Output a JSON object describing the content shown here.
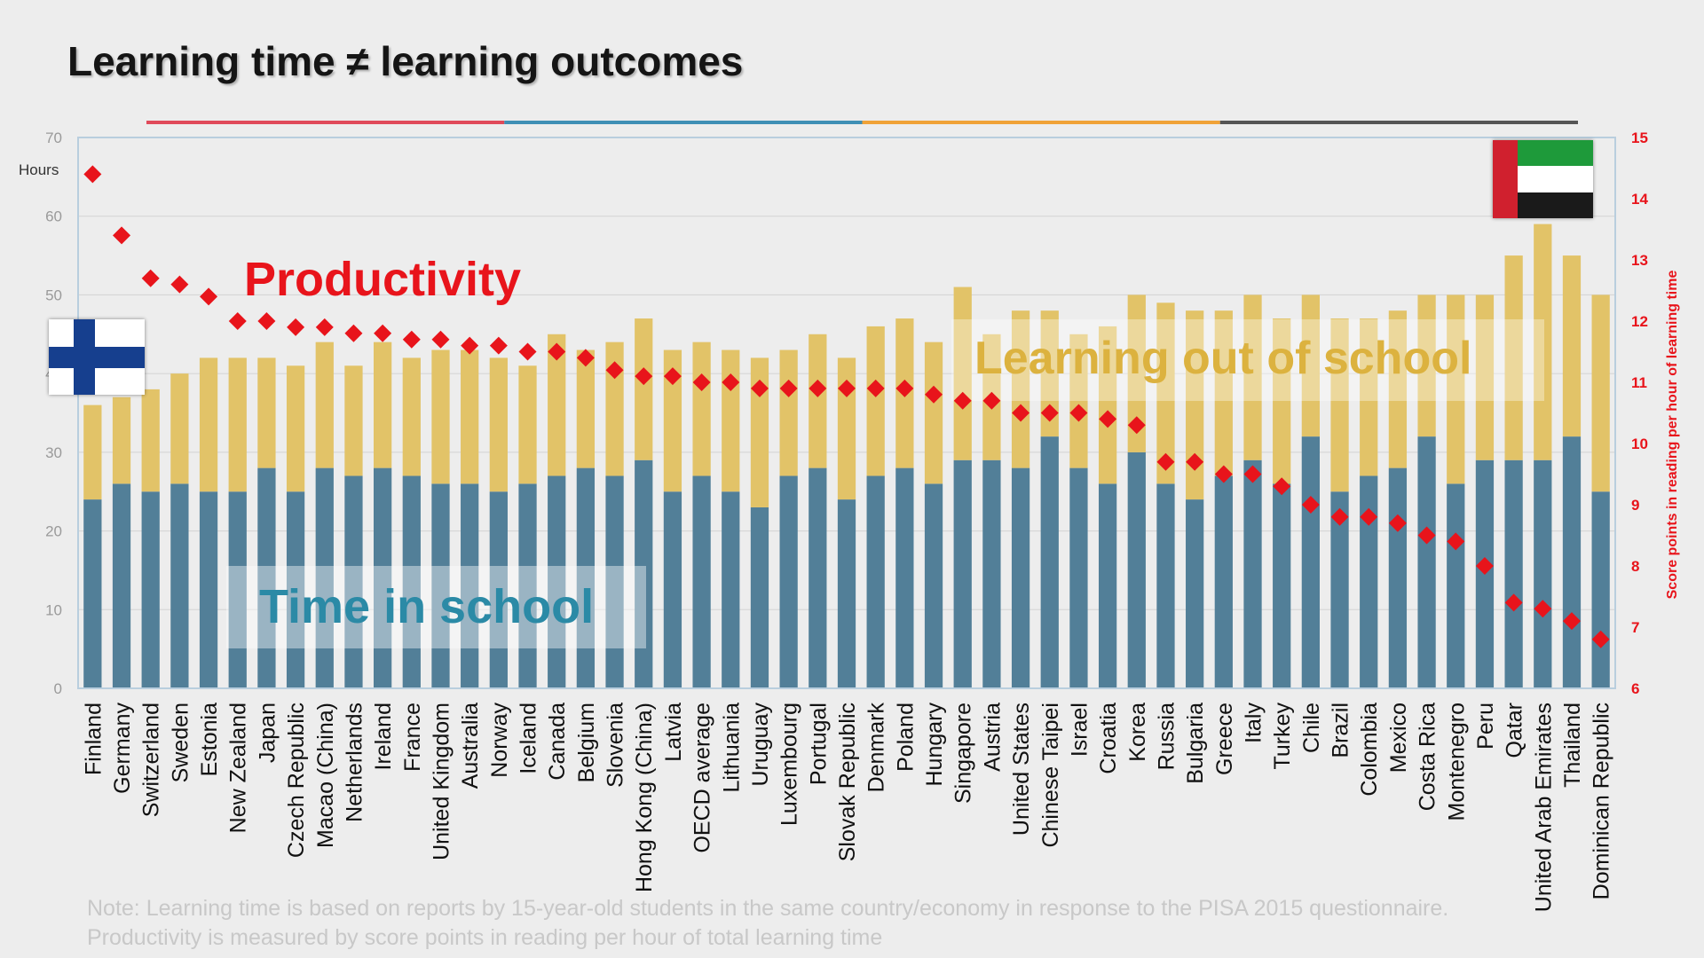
{
  "slide": {
    "title": "Learning time ≠ learning outcomes",
    "note_line1": "Note: Learning time is based on reports by 15-year-old students in the same country/economy in response to the PISA 2015 questionnaire.",
    "note_line2": "Productivity is measured by score points in reading per hour of total learning time"
  },
  "colors": {
    "school": "#527f98",
    "outside": "#e2c368",
    "marker": "#e8141b",
    "accent_bar": [
      "#e04a5a",
      "#3f8fb5",
      "#f0a238",
      "#555555"
    ]
  },
  "icons": [
    "finland-flag-icon",
    "uae-flag-icon"
  ],
  "chart_data": {
    "type": "bar",
    "stacked": true,
    "categories": [
      "Finland",
      "Germany",
      "Switzerland",
      "Sweden",
      "Estonia",
      "New Zealand",
      "Japan",
      "Czech Republic",
      "Macao (China)",
      "Netherlands",
      "Ireland",
      "France",
      "United Kingdom",
      "Australia",
      "Norway",
      "Iceland",
      "Canada",
      "Belgium",
      "Slovenia",
      "Hong Kong (China)",
      "Latvia",
      "OECD average",
      "Lithuania",
      "Uruguay",
      "Luxembourg",
      "Portugal",
      "Slovak Republic",
      "Denmark",
      "Poland",
      "Hungary",
      "Singapore",
      "Austria",
      "United States",
      "Chinese Taipei",
      "Israel",
      "Croatia",
      "Korea",
      "Russia",
      "Bulgaria",
      "Greece",
      "Italy",
      "Turkey",
      "Chile",
      "Brazil",
      "Colombia",
      "Mexico",
      "Costa Rica",
      "Montenegro",
      "Peru",
      "Qatar",
      "United Arab Emirates",
      "Thailand",
      "Dominican Republic"
    ],
    "series": [
      {
        "name": "Time in school",
        "values": [
          24,
          26,
          25,
          26,
          25,
          25,
          28,
          25,
          28,
          27,
          28,
          27,
          26,
          26,
          25,
          26,
          27,
          28,
          27,
          29,
          25,
          27,
          25,
          23,
          27,
          28,
          24,
          27,
          28,
          26,
          29,
          29,
          28,
          32,
          28,
          26,
          30,
          26,
          24,
          27,
          29,
          26,
          32,
          25,
          27,
          28,
          32,
          26,
          29,
          29,
          29,
          32,
          25
        ]
      },
      {
        "name": "Learning out of school",
        "values": [
          12,
          11,
          13,
          14,
          17,
          17,
          14,
          16,
          16,
          14,
          16,
          15,
          17,
          17,
          17,
          15,
          18,
          15,
          17,
          18,
          18,
          17,
          18,
          19,
          16,
          17,
          18,
          19,
          19,
          18,
          22,
          16,
          20,
          16,
          17,
          20,
          20,
          23,
          24,
          21,
          21,
          21,
          18,
          22,
          20,
          20,
          18,
          24,
          21,
          26,
          30,
          23,
          25
        ]
      }
    ],
    "productivity": {
      "name": "Productivity",
      "values": [
        14.4,
        13.4,
        12.7,
        12.6,
        12.4,
        12.0,
        12.0,
        11.9,
        11.9,
        11.8,
        11.8,
        11.7,
        11.7,
        11.6,
        11.6,
        11.5,
        11.5,
        11.4,
        11.2,
        11.1,
        11.1,
        11.0,
        11.0,
        10.9,
        10.9,
        10.9,
        10.9,
        10.9,
        10.9,
        10.8,
        10.7,
        10.7,
        10.5,
        10.5,
        10.5,
        10.4,
        10.3,
        9.7,
        9.7,
        9.5,
        9.5,
        9.3,
        9.0,
        8.8,
        8.8,
        8.7,
        8.5,
        8.4,
        8.0,
        7.4,
        7.3,
        7.1,
        6.8
      ]
    },
    "y_left": {
      "label": "Hours",
      "range": [
        0,
        70
      ],
      "ticks": [
        0,
        10,
        20,
        30,
        40,
        50,
        60,
        70
      ]
    },
    "y_right": {
      "label": "Score points in reading per hour of learning time",
      "range": [
        6,
        15
      ],
      "ticks": [
        6,
        7,
        8,
        9,
        10,
        11,
        12,
        13,
        14,
        15
      ]
    },
    "annotations": {
      "productivity": "Productivity",
      "school": "Time in school",
      "outside": "Learning out of school"
    },
    "grid": true
  }
}
